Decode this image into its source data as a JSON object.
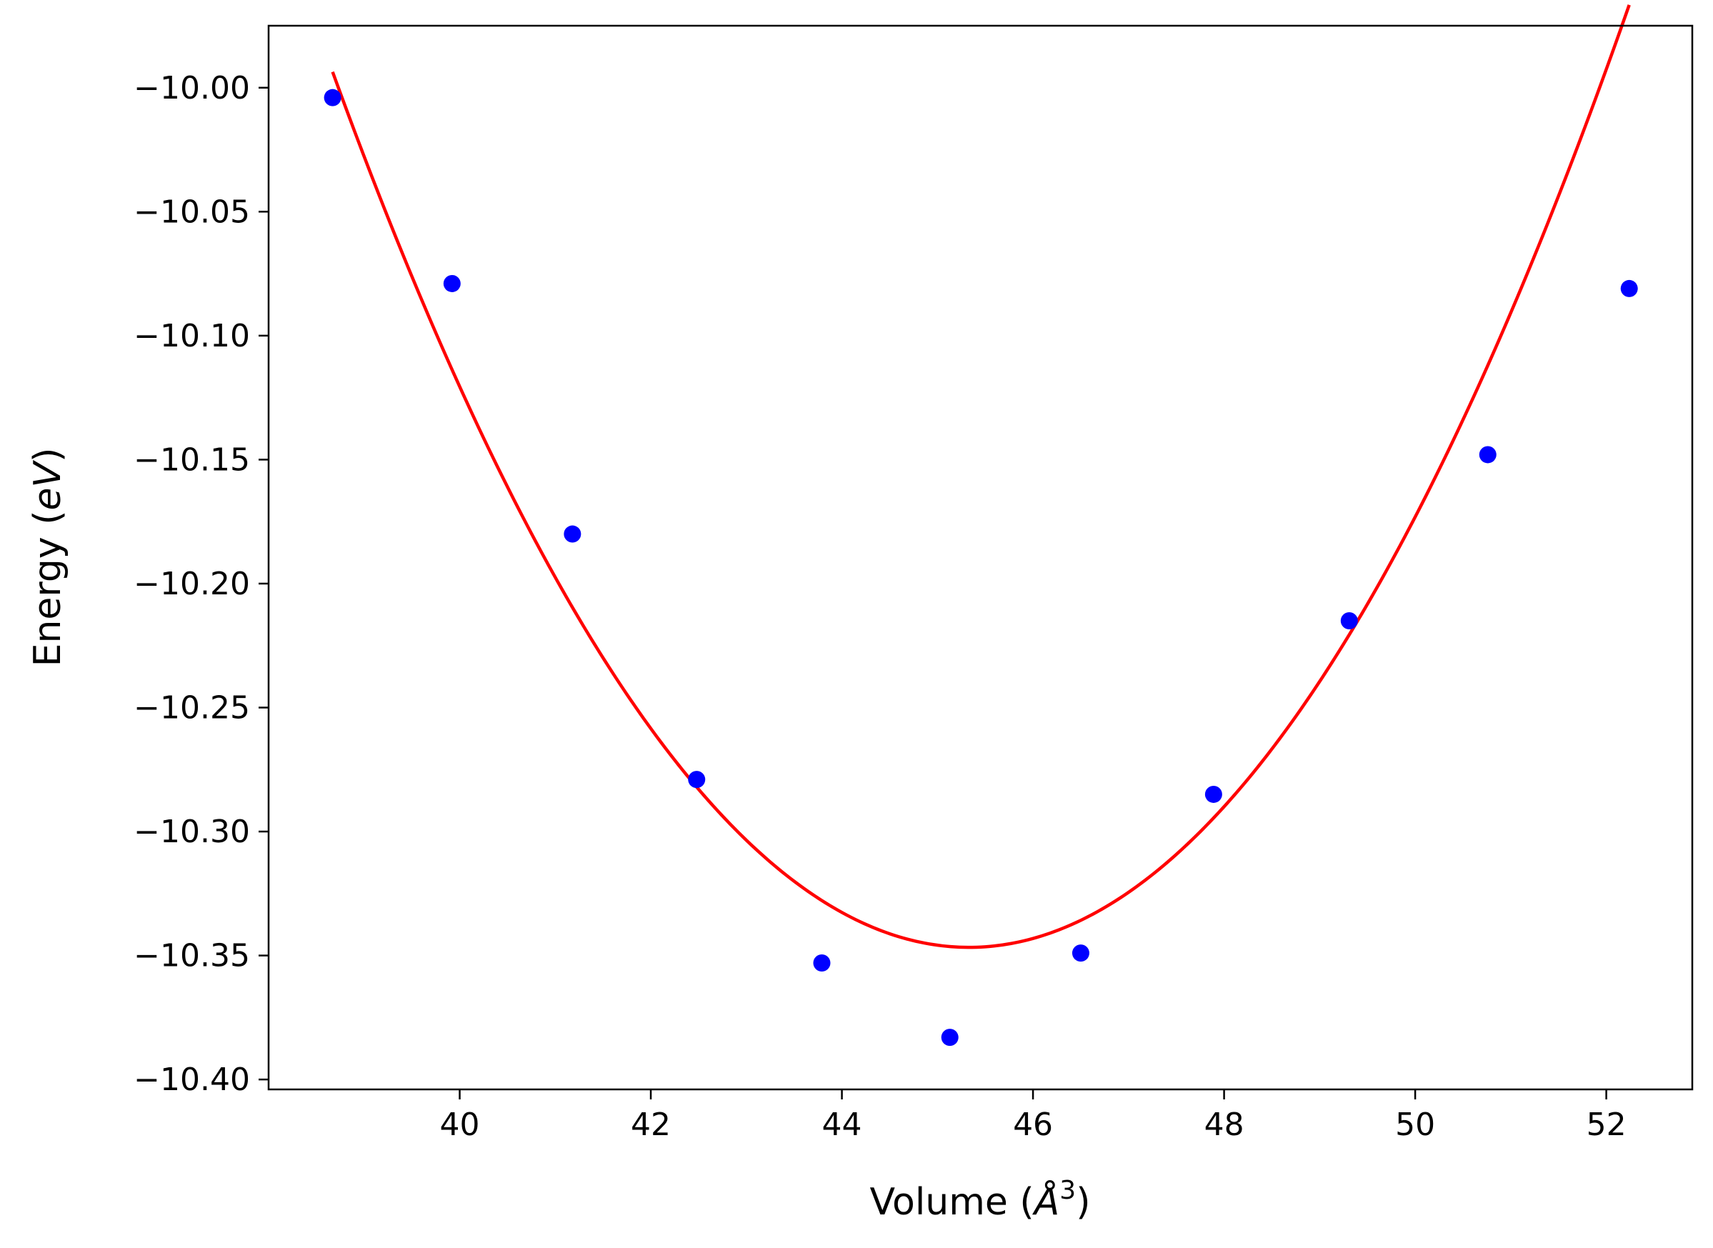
{
  "chart_data": {
    "type": "scatter",
    "title": "",
    "xlabel": "Volume (Å³)",
    "xlabel_parts": {
      "prefix": "Volume (",
      "symbol": "Å",
      "sup": "3",
      "suffix": ")"
    },
    "ylabel": "Energy (eV)",
    "ylabel_parts": {
      "prefix": "Energy (",
      "unit": "eV",
      "suffix": ")"
    },
    "xlim": [
      38.0,
      52.9
    ],
    "ylim": [
      -10.404,
      -9.975
    ],
    "xticks": [
      40,
      42,
      44,
      46,
      48,
      50,
      52
    ],
    "xtick_labels": [
      "40",
      "42",
      "44",
      "46",
      "48",
      "50",
      "52"
    ],
    "yticks": [
      -10.0,
      -10.05,
      -10.1,
      -10.15,
      -10.2,
      -10.25,
      -10.3,
      -10.35,
      -10.4
    ],
    "ytick_labels": [
      "−10.00",
      "−10.05",
      "−10.10",
      "−10.15",
      "−10.20",
      "−10.25",
      "−10.30",
      "−10.35",
      "−10.40"
    ],
    "grid": false,
    "series": [
      {
        "name": "data",
        "kind": "scatter",
        "color": "#0000ff",
        "x": [
          38.67,
          39.92,
          41.18,
          42.48,
          43.79,
          45.13,
          46.5,
          47.89,
          49.31,
          50.76,
          52.24
        ],
        "y": [
          -10.004,
          -10.079,
          -10.18,
          -10.279,
          -10.353,
          -10.383,
          -10.349,
          -10.285,
          -10.215,
          -10.148,
          -10.081
        ]
      },
      {
        "name": "fit",
        "kind": "line",
        "color": "#ff0000",
        "fit": {
          "form": "quadratic",
          "v0": 45.33,
          "e0": -10.3467,
          "a": 0.00796
        },
        "x_range": [
          38.67,
          52.24
        ]
      }
    ]
  }
}
